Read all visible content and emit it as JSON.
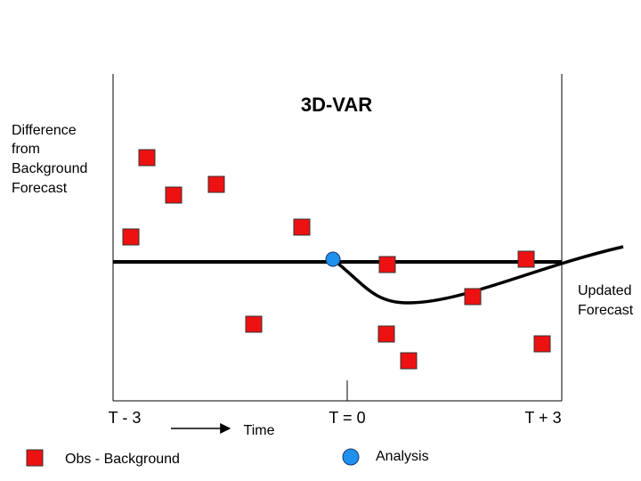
{
  "title": "3D-VAR",
  "y_label": [
    "Difference",
    "from",
    "Background",
    "Forecast"
  ],
  "curve_label": [
    "Updated",
    "Forecast"
  ],
  "time_labels": [
    "T - 3",
    "T = 0",
    "T + 3"
  ],
  "time_axis_label": "Time",
  "legend": {
    "observation": "Obs - Background",
    "analysis": "Analysis"
  }
}
